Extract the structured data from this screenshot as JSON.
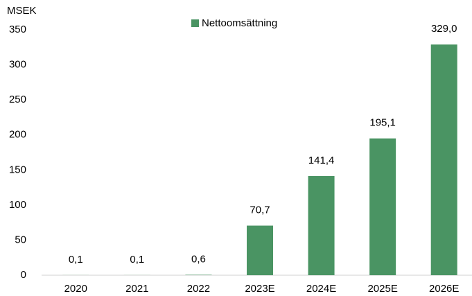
{
  "chart_data": {
    "type": "bar",
    "y_axis_label": "MSEK",
    "legend": "Nettoomsättning",
    "categories": [
      "2020",
      "2021",
      "2022",
      "2023E",
      "2024E",
      "2025E",
      "2026E"
    ],
    "values": [
      0.1,
      0.1,
      0.6,
      70.7,
      141.4,
      195.1,
      329.0
    ],
    "value_labels": [
      "0,1",
      "0,1",
      "0,6",
      "70,7",
      "141,4",
      "195,1",
      "329,0"
    ],
    "color": "#4a9463",
    "ylim": [
      0,
      350
    ],
    "yticks": [
      0,
      50,
      100,
      150,
      200,
      250,
      300,
      350
    ],
    "grid": false
  }
}
